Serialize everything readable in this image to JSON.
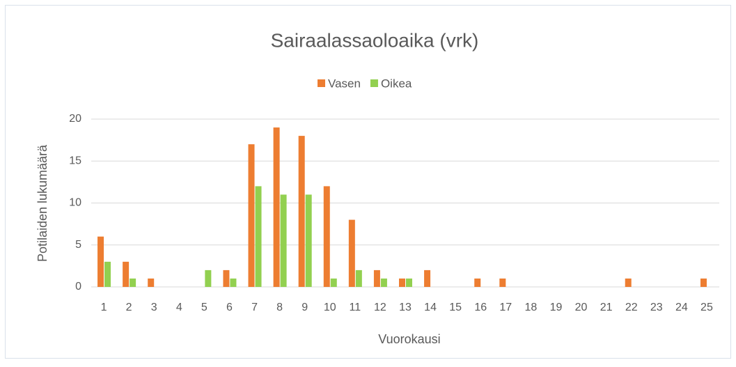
{
  "chart_data": {
    "type": "bar",
    "title": "Sairaalassaoloaika  (vrk)",
    "x_label": "Vuorokausi",
    "y_label": "Potilaiden lukumäärä",
    "categories": [
      "1",
      "2",
      "3",
      "4",
      "5",
      "6",
      "7",
      "8",
      "9",
      "10",
      "11",
      "12",
      "13",
      "14",
      "15",
      "16",
      "17",
      "18",
      "19",
      "20",
      "21",
      "22",
      "23",
      "24",
      "25"
    ],
    "series": [
      {
        "name": "Vasen",
        "color": "#ed7d31",
        "values": [
          6,
          3,
          1,
          0,
          0,
          2,
          17,
          19,
          18,
          12,
          8,
          2,
          1,
          2,
          0,
          1,
          1,
          0,
          0,
          0,
          0,
          1,
          0,
          0,
          1
        ]
      },
      {
        "name": "Oikea",
        "color": "#92d050",
        "values": [
          3,
          1,
          0,
          0,
          2,
          1,
          12,
          11,
          11,
          1,
          2,
          1,
          1,
          0,
          0,
          0,
          0,
          0,
          0,
          0,
          0,
          0,
          0,
          0,
          0
        ]
      }
    ],
    "ylim": [
      0,
      20
    ],
    "yticks": [
      0,
      5,
      10,
      15,
      20
    ],
    "grid": true,
    "legend": "top"
  }
}
